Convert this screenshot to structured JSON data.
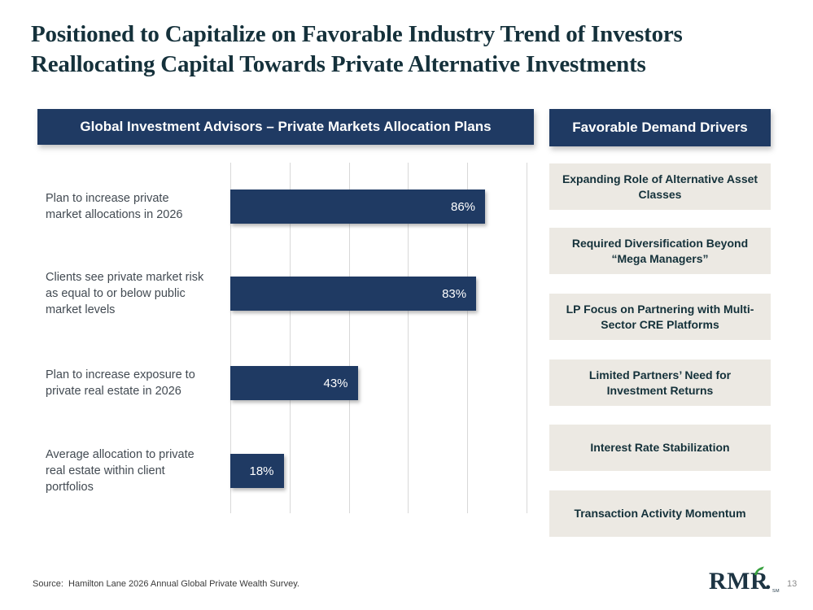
{
  "title": {
    "line1": "Positioned to Capitalize on Favorable Industry Trend of Investors",
    "line2": "Reallocating Capital Towards Private Alternative Investments"
  },
  "chart": {
    "header": "Global Investment Advisors – Private Markets Allocation Plans"
  },
  "chart_data": {
    "type": "bar",
    "orientation": "horizontal",
    "title": "Global Investment Advisors – Private Markets Allocation Plans",
    "categories": [
      "Plan to increase private market allocations in 2026",
      "Clients see private market risk as equal to or below public market levels",
      "Plan to increase exposure to private real estate in 2026",
      "Average allocation to private real estate within client portfolios"
    ],
    "values": [
      86,
      83,
      43,
      18
    ],
    "value_labels": [
      "86%",
      "83%",
      "43%",
      "18%"
    ],
    "xlabel": "",
    "ylabel": "",
    "xlim": [
      0,
      100
    ],
    "gridlines_percent": [
      0,
      20,
      40,
      60,
      80,
      100
    ],
    "grid": "vertical-only",
    "legend": "none",
    "bar_color": "#1f3a63",
    "value_label_color": "#ffffff"
  },
  "drivers": {
    "header": "Favorable Demand Drivers",
    "items": [
      "Expanding Role of Alternative Asset Classes",
      "Required Diversification Beyond “Mega Managers”",
      "LP Focus on Partnering with Multi-Sector CRE Platforms",
      "Limited Partners’ Need for Investment Returns",
      "Interest Rate Stabilization",
      "Transaction Activity Momentum"
    ]
  },
  "footer": {
    "source": "Source:  Hamilton Lane 2026 Annual Global Private Wealth Survey.",
    "logo": {
      "text": "RMR",
      "period": ".",
      "sm": "SM"
    },
    "page_number": "13"
  },
  "colors": {
    "navy": "#1f3a63",
    "beige": "#ece9e3",
    "dark_teal_text": "#14313a",
    "green_accent": "#38a13f",
    "gridline": "#d8d8d8"
  }
}
